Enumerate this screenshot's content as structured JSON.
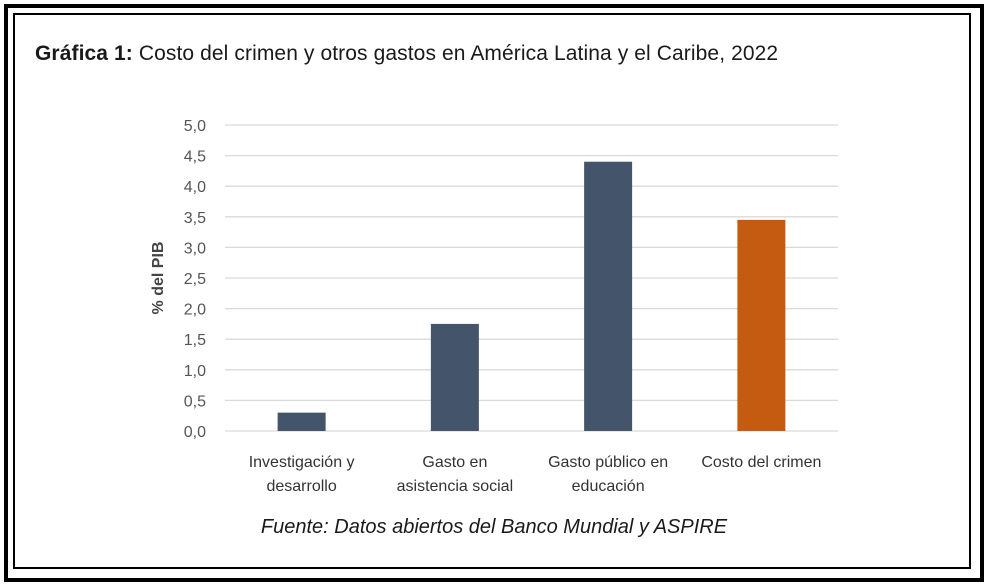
{
  "title_prefix": "Gráfica  1:",
  "title_text": " Costo del crimen y otros gastos en América Latina y el Caribe, 2022",
  "source": "Fuente: Datos abiertos del Banco Mundial y ASPIRE",
  "colors": {
    "default_bar": "#44546a",
    "highlight_bar": "#c55a11",
    "grid": "#d9d9d9"
  },
  "chart_data": {
    "type": "bar",
    "title": "Costo del crimen y otros gastos en América Latina y el Caribe, 2022",
    "xlabel": "",
    "ylabel": "% del PIB",
    "ylim": [
      0,
      5.0
    ],
    "yticks": [
      "0,0",
      "0,5",
      "1,0",
      "1,5",
      "2,0",
      "2,5",
      "3,0",
      "3,5",
      "4,0",
      "4,5",
      "5,0"
    ],
    "grid": true,
    "categories": [
      [
        "Investigación y",
        "desarrollo"
      ],
      [
        "Gasto en",
        "asistencia social"
      ],
      [
        "Gasto público en",
        "educación"
      ],
      [
        "Costo del crimen"
      ]
    ],
    "values": [
      0.3,
      1.75,
      4.4,
      3.45
    ],
    "highlight_index": 3
  }
}
